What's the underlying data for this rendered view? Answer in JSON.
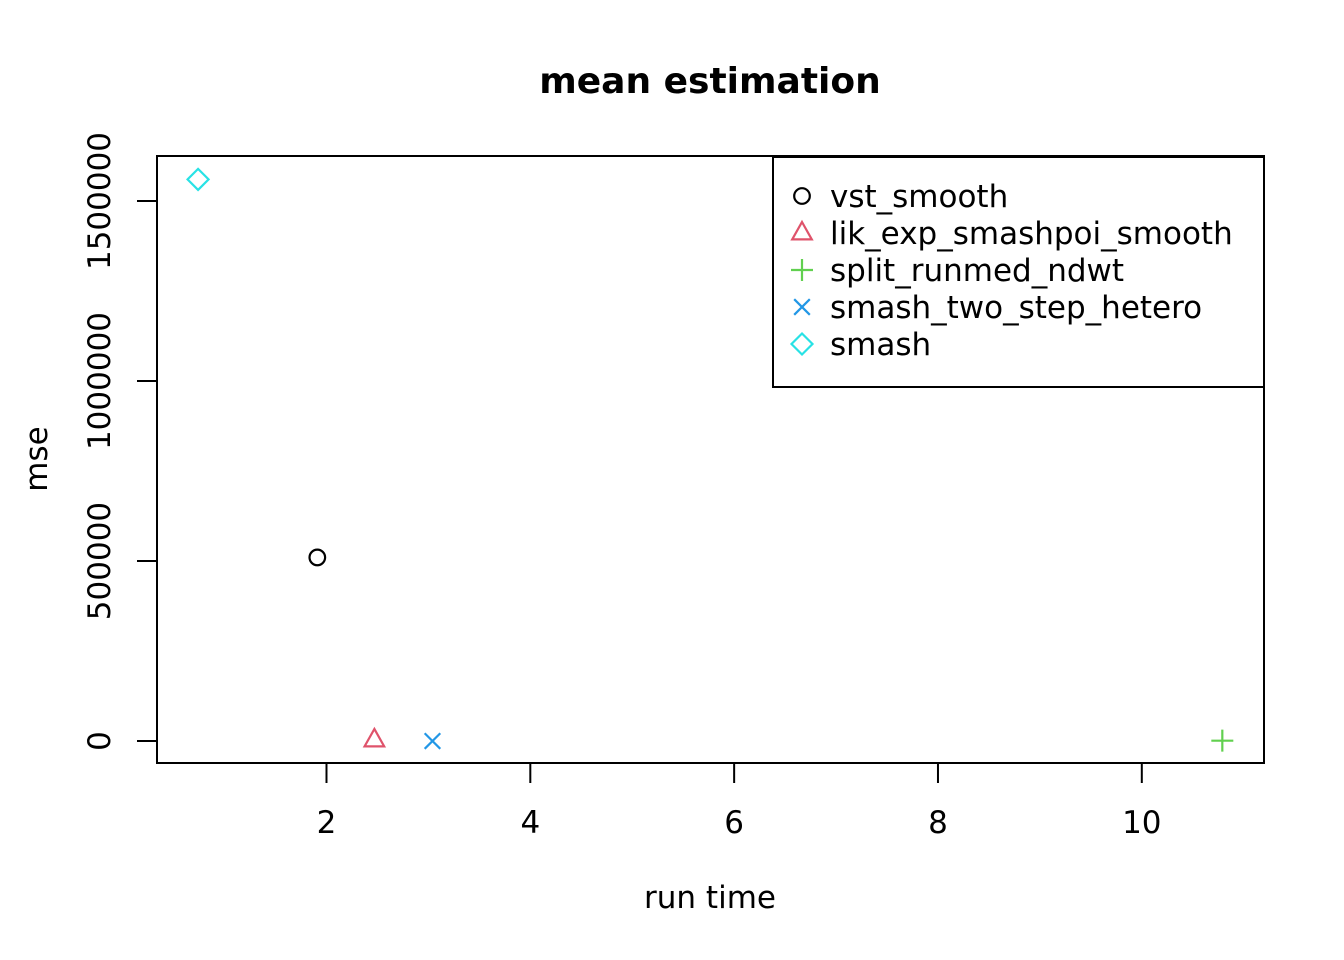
{
  "chart_data": {
    "type": "scatter",
    "title": "mean estimation",
    "xlabel": "run time",
    "ylabel": "mse",
    "xlim": [
      0.337,
      11.199
    ],
    "ylim": [
      -61000,
      1625000
    ],
    "xticks": [
      2,
      4,
      6,
      8,
      10
    ],
    "yticks": [
      0,
      500000,
      1000000,
      1500000
    ],
    "grid": false,
    "legend_position": "topright",
    "axis_color": "#000000",
    "background_color": "#ffffff",
    "series": [
      {
        "name": "vst_smooth",
        "marker": "circle",
        "color": "#000000",
        "points": [
          {
            "x": 1.91,
            "y": 510000
          }
        ]
      },
      {
        "name": "lik_exp_smashpoi_smooth",
        "marker": "triangle",
        "color": "#DF536B",
        "points": [
          {
            "x": 2.47,
            "y": 3000
          }
        ]
      },
      {
        "name": "split_runmed_ndwt",
        "marker": "plus",
        "color": "#61D04F",
        "points": [
          {
            "x": 10.79,
            "y": 1000
          }
        ]
      },
      {
        "name": "smash_two_step_hetero",
        "marker": "x",
        "color": "#2297E6",
        "points": [
          {
            "x": 3.04,
            "y": 0
          }
        ]
      },
      {
        "name": "smash",
        "marker": "diamond",
        "color": "#28E2E5",
        "points": [
          {
            "x": 0.74,
            "y": 1560000
          }
        ]
      }
    ]
  }
}
